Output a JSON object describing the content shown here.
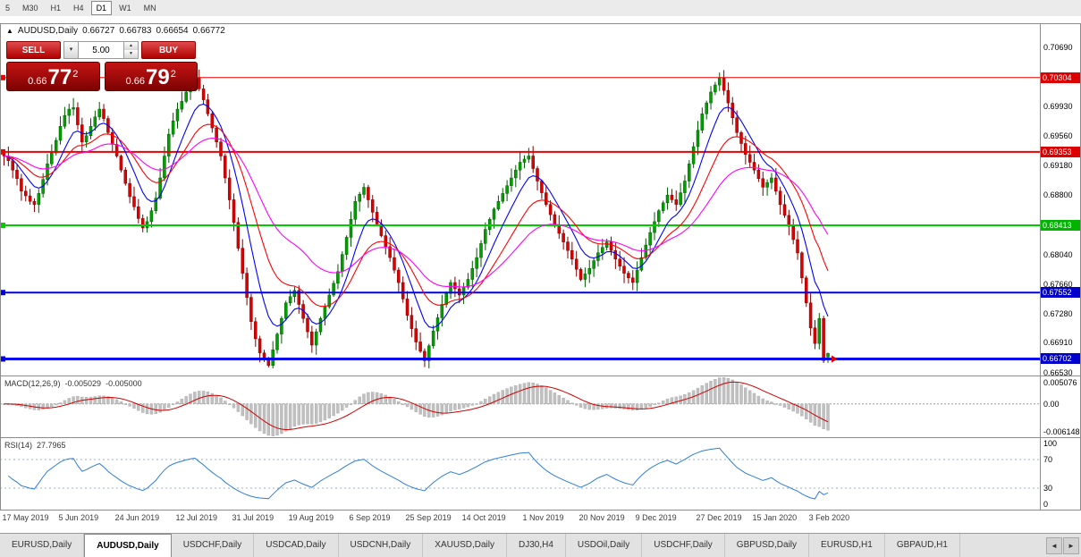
{
  "timeframe_bar": {
    "buttons": [
      "5",
      "M30",
      "H1",
      "H4",
      "D1",
      "W1",
      "MN"
    ],
    "active": "D1"
  },
  "chart_header": {
    "marker": "▲",
    "title": "AUDUSD,Daily",
    "open": "0.66727",
    "high": "0.66783",
    "low": "0.66654",
    "close": "0.66772"
  },
  "one_click_trading": {
    "sell_label": "SELL",
    "buy_label": "BUY",
    "volume": "5.00",
    "dropdown_icon": "▾",
    "step_up_icon": "▲",
    "step_down_icon": "▼",
    "sell_price": {
      "prefix": "0.66",
      "big": "77",
      "sup": "2"
    },
    "buy_price": {
      "prefix": "0.66",
      "big": "79",
      "sup": "2"
    }
  },
  "price_axis": {
    "ticks": [
      {
        "label": "0.70690",
        "value": 0.7069
      },
      {
        "label": "0.69930",
        "value": 0.6993
      },
      {
        "label": "0.69560",
        "value": 0.6956
      },
      {
        "label": "0.69180",
        "value": 0.6918
      },
      {
        "label": "0.68800",
        "value": 0.688
      },
      {
        "label": "0.68040",
        "value": 0.6804
      },
      {
        "label": "0.67660",
        "value": 0.6766
      },
      {
        "label": "0.67280",
        "value": 0.6728
      },
      {
        "label": "0.66910",
        "value": 0.6691
      },
      {
        "label": "0.66530",
        "value": 0.6653
      }
    ],
    "badges": [
      {
        "label": "0.70304",
        "value": 0.70304,
        "color": "#dd0000"
      },
      {
        "label": "0.69353",
        "value": 0.69353,
        "color": "#dd0000"
      },
      {
        "label": "0.68413",
        "value": 0.68413,
        "color": "#00b400"
      },
      {
        "label": "0.67552",
        "value": 0.67552,
        "color": "#0000cc"
      },
      {
        "label": "0.66702",
        "value": 0.66702,
        "color": "#0000cc"
      }
    ]
  },
  "macd_panel": {
    "label": "MACD(12,26,9)",
    "value_main": "-0.005029",
    "value_signal": "-0.005000",
    "axis_top": {
      "label": "0.005076",
      "value": 0.005076
    },
    "axis_zero": {
      "label": "0.00",
      "value": 0
    },
    "axis_bottom": {
      "label": "-0.006148",
      "value": -0.006148
    },
    "histogram_color": "#c0c0c0",
    "signal_color": "#d00000"
  },
  "rsi_panel": {
    "label": "RSI(14)",
    "value": "27.7965",
    "axis": [
      {
        "label": "100",
        "value": 100
      },
      {
        "label": "70",
        "value": 70
      },
      {
        "label": "30",
        "value": 30
      },
      {
        "label": "0",
        "value": 0
      }
    ],
    "levels": [
      70,
      30
    ],
    "line_color": "#2f7ed8"
  },
  "time_axis": {
    "labels": [
      {
        "text": "17 May 2019",
        "index": 0
      },
      {
        "text": "5 Jun 2019",
        "index": 13
      },
      {
        "text": "24 Jun 2019",
        "index": 26
      },
      {
        "text": "12 Jul 2019",
        "index": 40
      },
      {
        "text": "31 Jul 2019",
        "index": 53
      },
      {
        "text": "19 Aug 2019",
        "index": 66
      },
      {
        "text": "6 Sep 2019",
        "index": 80
      },
      {
        "text": "25 Sep 2019",
        "index": 93
      },
      {
        "text": "14 Oct 2019",
        "index": 106
      },
      {
        "text": "1 Nov 2019",
        "index": 120
      },
      {
        "text": "20 Nov 2019",
        "index": 133
      },
      {
        "text": "9 Dec 2019",
        "index": 146
      },
      {
        "text": "27 Dec 2019",
        "index": 160
      },
      {
        "text": "15 Jan 2020",
        "index": 173
      },
      {
        "text": "3 Feb 2020",
        "index": 186
      }
    ]
  },
  "bottom_tabs": {
    "left_arrow": "◄",
    "right_arrow": "►",
    "tabs": [
      {
        "label": "EURUSD,Daily",
        "active": false
      },
      {
        "label": "AUDUSD,Daily",
        "active": true
      },
      {
        "label": "USDCHF,Daily",
        "active": false
      },
      {
        "label": "USDCAD,Daily",
        "active": false
      },
      {
        "label": "USDCNH,Daily",
        "active": false
      },
      {
        "label": "XAUUSD,Daily",
        "active": false
      },
      {
        "label": "DJ30,H4",
        "active": false
      },
      {
        "label": "USDOil,Daily",
        "active": false
      },
      {
        "label": "USDCHF,Daily",
        "active": false
      },
      {
        "label": "GBPUSD,Daily",
        "active": false
      },
      {
        "label": "EURUSD,H1",
        "active": false
      },
      {
        "label": "GBPAUD,H1",
        "active": false
      }
    ]
  },
  "chart_data": {
    "type": "candlestick",
    "symbol": "AUDUSD",
    "timeframe": "Daily",
    "current_ohlc": {
      "open": 0.66727,
      "high": 0.66783,
      "low": 0.66654,
      "close": 0.66772
    },
    "price_range": [
      0.6649,
      0.71
    ],
    "up_color": "#00a000",
    "down_color": "#dd0000",
    "horizontal_levels": [
      {
        "price": 0.70304,
        "color": "#ee0000",
        "width": 1
      },
      {
        "price": 0.69353,
        "color": "#ee0000",
        "width": 2
      },
      {
        "price": 0.68413,
        "color": "#00cc00",
        "width": 2
      },
      {
        "price": 0.67552,
        "color": "#0000ee",
        "width": 2
      },
      {
        "price": 0.66702,
        "color": "#0000ee",
        "width": 3
      }
    ],
    "moving_averages": [
      {
        "color": "#0000ff",
        "period": 8
      },
      {
        "color": "#ff0000",
        "period": 17
      },
      {
        "color": "#ff00ff",
        "period": 34
      }
    ],
    "macd": {
      "fast": 12,
      "slow": 26,
      "signal": 9,
      "current_main": -0.005029,
      "current_signal": -0.005,
      "range": [
        -0.006148,
        0.005076
      ]
    },
    "rsi": {
      "period": 14,
      "current": 27.7965,
      "range": [
        0,
        100
      ],
      "levels": [
        30,
        70
      ]
    },
    "closes": [
      0.693,
      0.6924,
      0.6912,
      0.6901,
      0.6885,
      0.6879,
      0.6872,
      0.6868,
      0.6882,
      0.69,
      0.692,
      0.6934,
      0.695,
      0.6968,
      0.6982,
      0.699,
      0.6992,
      0.697,
      0.6948,
      0.6956,
      0.6968,
      0.698,
      0.699,
      0.6978,
      0.696,
      0.6945,
      0.693,
      0.6912,
      0.6895,
      0.6878,
      0.6865,
      0.685,
      0.6838,
      0.6846,
      0.686,
      0.6876,
      0.6902,
      0.693,
      0.6958,
      0.6975,
      0.699,
      0.7,
      0.7012,
      0.7022,
      0.703,
      0.7016,
      0.7002,
      0.6984,
      0.6966,
      0.6948,
      0.693,
      0.6902,
      0.6874,
      0.6845,
      0.6812,
      0.678,
      0.6749,
      0.6718,
      0.6696,
      0.6678,
      0.667,
      0.6662,
      0.6682,
      0.6702,
      0.6722,
      0.6742,
      0.675,
      0.6758,
      0.674,
      0.6722,
      0.6705,
      0.6688,
      0.6705,
      0.6722,
      0.6737,
      0.6752,
      0.6767,
      0.6782,
      0.6804,
      0.6826,
      0.6849,
      0.6872,
      0.6881,
      0.689,
      0.6874,
      0.6858,
      0.6843,
      0.6828,
      0.6814,
      0.68,
      0.6784,
      0.6768,
      0.6747,
      0.6726,
      0.6709,
      0.6692,
      0.668,
      0.6668,
      0.6687,
      0.6706,
      0.6723,
      0.674,
      0.6754,
      0.6768,
      0.676,
      0.6752,
      0.6762,
      0.6772,
      0.6786,
      0.68,
      0.6818,
      0.6836,
      0.6849,
      0.6862,
      0.6872,
      0.6882,
      0.6892,
      0.6902,
      0.6912,
      0.6922,
      0.6926,
      0.693,
      0.6914,
      0.6898,
      0.6883,
      0.6868,
      0.6855,
      0.6842,
      0.6831,
      0.682,
      0.6809,
      0.6798,
      0.6785,
      0.6772,
      0.6779,
      0.6786,
      0.6796,
      0.6806,
      0.6813,
      0.682,
      0.6809,
      0.6798,
      0.6789,
      0.678,
      0.6774,
      0.6768,
      0.6784,
      0.68,
      0.6816,
      0.6832,
      0.6846,
      0.686,
      0.687,
      0.688,
      0.6874,
      0.6868,
      0.6883,
      0.6898,
      0.692,
      0.6942,
      0.6963,
      0.6984,
      0.6998,
      0.7012,
      0.7021,
      0.703,
      0.7014,
      0.6998,
      0.6979,
      0.696,
      0.6946,
      0.6932,
      0.6922,
      0.6912,
      0.6901,
      0.689,
      0.6896,
      0.6902,
      0.6885,
      0.6868,
      0.6854,
      0.684,
      0.6823,
      0.6806,
      0.6774,
      0.6742,
      0.671,
      0.669,
      0.6722,
      0.6668,
      0.66772
    ]
  }
}
